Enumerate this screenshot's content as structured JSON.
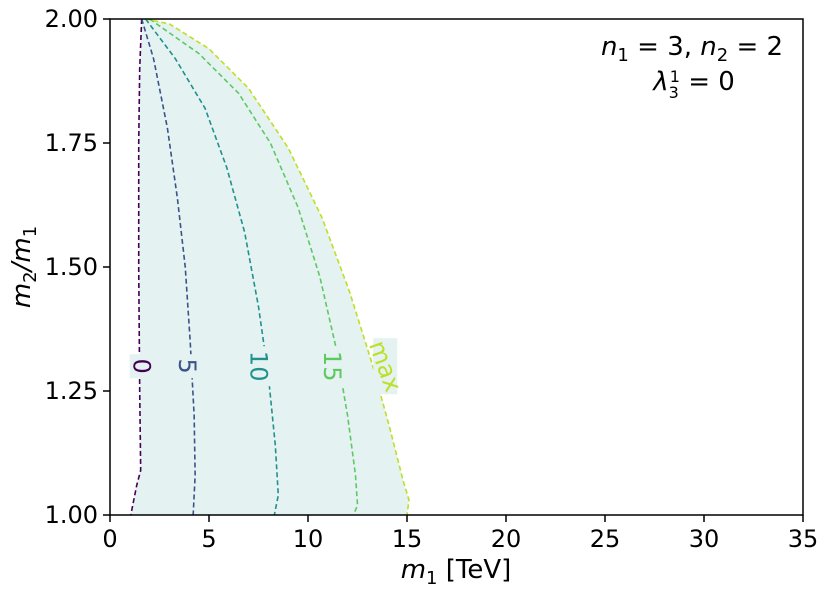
{
  "chart_data": {
    "type": "line",
    "xlabel_var": "m",
    "xlabel_sub": "1",
    "xlabel_unit": "[TeV]",
    "ylabel": "m2/m1",
    "xlim": [
      0,
      35
    ],
    "ylim": [
      1.0,
      2.0
    ],
    "x_ticks": [
      "0",
      "5",
      "10",
      "15",
      "20",
      "25",
      "30",
      "35"
    ],
    "y_ticks": [
      "1.00",
      "1.25",
      "1.50",
      "1.75",
      "2.00"
    ],
    "grid": false,
    "annotation_line1": "n1 = 3, n2 = 2",
    "annotation_line2": "λ13 = 0",
    "shaded_region_color": "#e4f2f1",
    "series": [
      {
        "label": "0",
        "color": "#440154",
        "label_at": [
          1.6,
          1.3
        ],
        "points": [
          [
            1.6,
            2.0
          ],
          [
            1.5,
            1.9
          ],
          [
            1.45,
            1.75
          ],
          [
            1.45,
            1.5
          ],
          [
            1.5,
            1.25
          ],
          [
            1.55,
            1.09
          ],
          [
            1.35,
            1.06
          ],
          [
            1.2,
            1.03
          ],
          [
            1.05,
            1.0
          ]
        ]
      },
      {
        "label": "5",
        "color": "#3b528b",
        "label_at": [
          3.9,
          1.3
        ],
        "points": [
          [
            1.6,
            2.0
          ],
          [
            2.2,
            1.92
          ],
          [
            2.9,
            1.78
          ],
          [
            3.4,
            1.64
          ],
          [
            3.8,
            1.5
          ],
          [
            4.05,
            1.35
          ],
          [
            4.25,
            1.2
          ],
          [
            4.3,
            1.08
          ],
          [
            4.2,
            1.0
          ]
        ]
      },
      {
        "label": "10",
        "color": "#21918c",
        "label_at": [
          7.5,
          1.3
        ],
        "points": [
          [
            1.8,
            2.0
          ],
          [
            3.3,
            1.92
          ],
          [
            4.8,
            1.82
          ],
          [
            5.9,
            1.7
          ],
          [
            6.8,
            1.57
          ],
          [
            7.5,
            1.42
          ],
          [
            8.0,
            1.28
          ],
          [
            8.35,
            1.14
          ],
          [
            8.5,
            1.04
          ],
          [
            8.3,
            1.0
          ]
        ]
      },
      {
        "label": "15",
        "color": "#5ec962",
        "label_at": [
          11.2,
          1.3
        ],
        "points": [
          [
            2.0,
            2.0
          ],
          [
            4.5,
            1.93
          ],
          [
            6.5,
            1.85
          ],
          [
            8.1,
            1.75
          ],
          [
            9.5,
            1.62
          ],
          [
            10.6,
            1.48
          ],
          [
            11.4,
            1.34
          ],
          [
            12.0,
            1.2
          ],
          [
            12.4,
            1.08
          ],
          [
            12.5,
            1.02
          ],
          [
            12.3,
            1.0
          ]
        ]
      },
      {
        "label": "max",
        "color": "#bddf26",
        "label_at": [
          13.9,
          1.3
        ],
        "points": [
          [
            1.8,
            2.0
          ],
          [
            3.0,
            1.99
          ],
          [
            5.0,
            1.94
          ],
          [
            7.0,
            1.86
          ],
          [
            9.0,
            1.74
          ],
          [
            10.7,
            1.6
          ],
          [
            12.1,
            1.45
          ],
          [
            13.2,
            1.31
          ],
          [
            14.1,
            1.18
          ],
          [
            14.8,
            1.07
          ],
          [
            15.1,
            1.03
          ],
          [
            15.0,
            1.0
          ]
        ]
      }
    ]
  }
}
